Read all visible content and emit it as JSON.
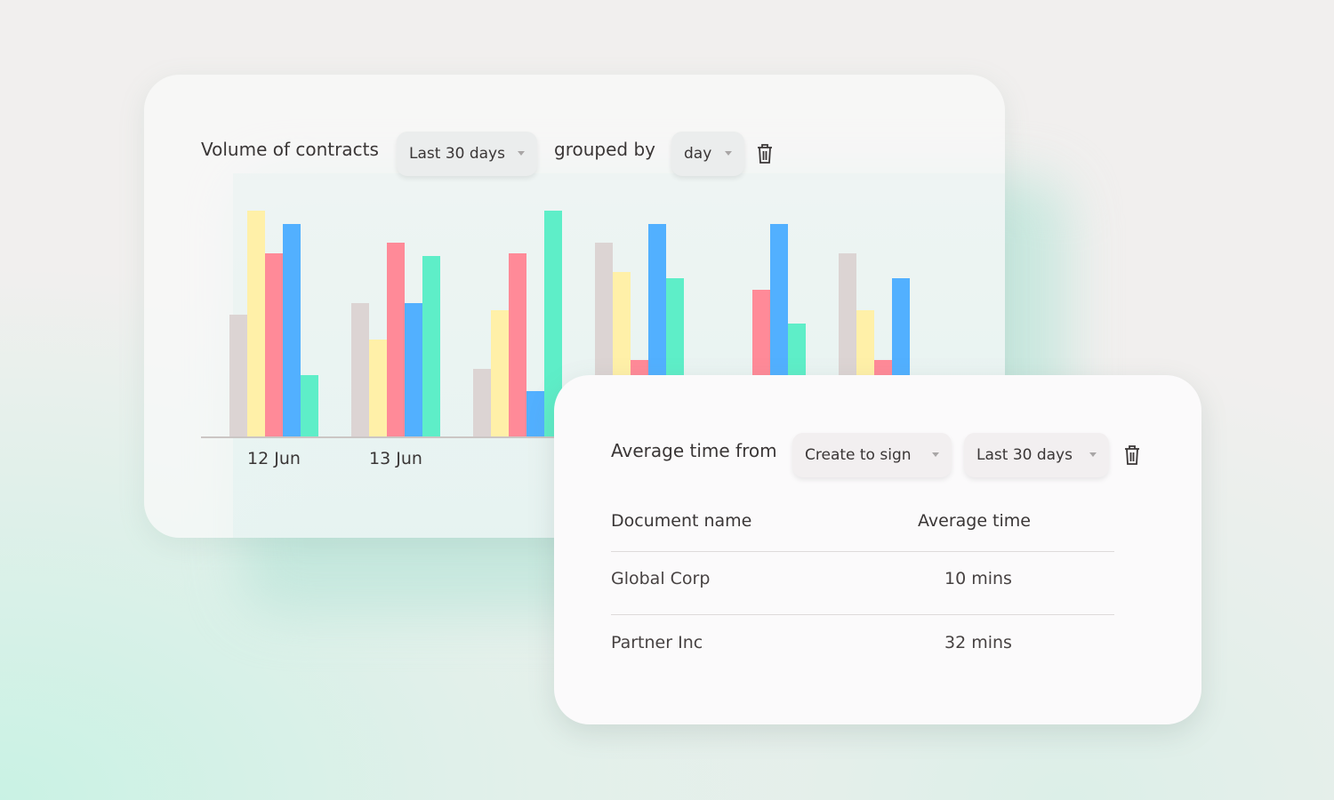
{
  "volume_card": {
    "title": "Volume of contracts",
    "range_select": "Last 30 days",
    "grouped_by_label": "grouped by",
    "group_select": "day"
  },
  "chart_data": {
    "type": "bar",
    "categories": [
      "12 Jun",
      "13 Jun",
      "",
      "",
      "",
      ""
    ],
    "ylim": [
      0,
      100
    ],
    "series": [
      {
        "name": "grey",
        "color": "#dcd4d3",
        "values": [
          54,
          59,
          30,
          86,
          0,
          81
        ]
      },
      {
        "name": "yellow",
        "color": "#fff0a8",
        "values": [
          100,
          43,
          56,
          73,
          0,
          56
        ]
      },
      {
        "name": "pink",
        "color": "#ff8a98",
        "values": [
          81,
          86,
          81,
          34,
          65,
          34
        ]
      },
      {
        "name": "blue",
        "color": "#52b0ff",
        "values": [
          94,
          59,
          20,
          94,
          94,
          70
        ]
      },
      {
        "name": "green",
        "color": "#5eeec8",
        "values": [
          27,
          80,
          100,
          70,
          50,
          0
        ]
      }
    ]
  },
  "avg_card": {
    "title": "Average time from",
    "stage_select": "Create to sign",
    "range_select": "Last 30 days",
    "columns": [
      "Document name",
      "Average time"
    ],
    "rows": [
      {
        "name": "Global Corp",
        "time": "10 mins"
      },
      {
        "name": "Partner Inc",
        "time": "32 mins"
      }
    ]
  }
}
